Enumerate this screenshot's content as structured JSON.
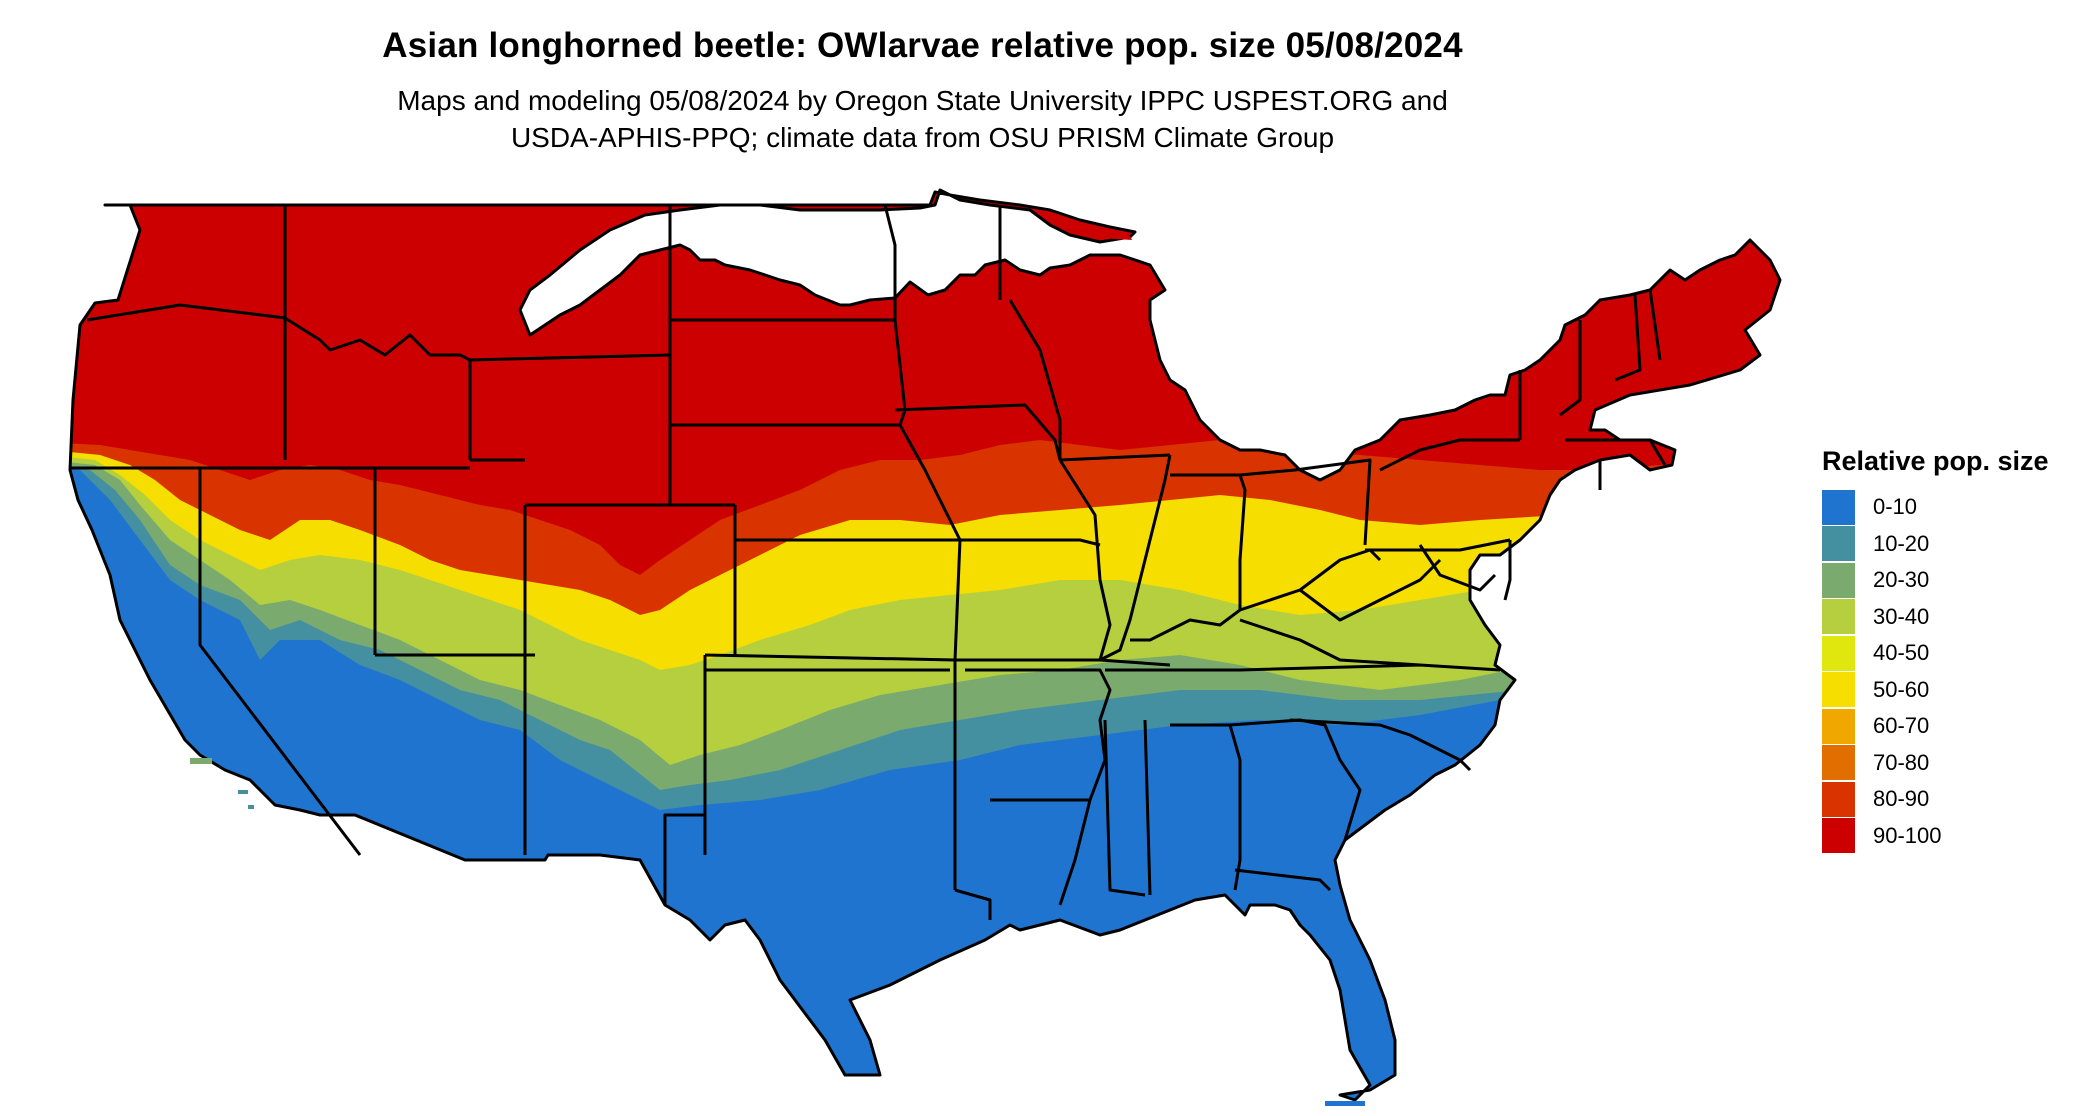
{
  "title": "Asian longhorned beetle: OWlarvae relative pop. size 05/08/2024",
  "subtitle_line1": "Maps and modeling 05/08/2024 by Oregon State University IPPC USPEST.ORG and",
  "subtitle_line2": "USDA-APHIS-PPQ; climate data from OSU PRISM Climate Group",
  "legend": {
    "title": "Relative pop. size",
    "items": [
      {
        "label": "0-10",
        "color": "#1f74cf"
      },
      {
        "label": "10-20",
        "color": "#4590a0"
      },
      {
        "label": "20-30",
        "color": "#7aaa6e"
      },
      {
        "label": "30-40",
        "color": "#b5cf3f"
      },
      {
        "label": "40-50",
        "color": "#dfe70f"
      },
      {
        "label": "50-60",
        "color": "#f5de00"
      },
      {
        "label": "60-70",
        "color": "#f0a800"
      },
      {
        "label": "70-80",
        "color": "#e26e00"
      },
      {
        "label": "80-90",
        "color": "#d93400"
      },
      {
        "label": "90-100",
        "color": "#cc0000"
      }
    ]
  }
}
